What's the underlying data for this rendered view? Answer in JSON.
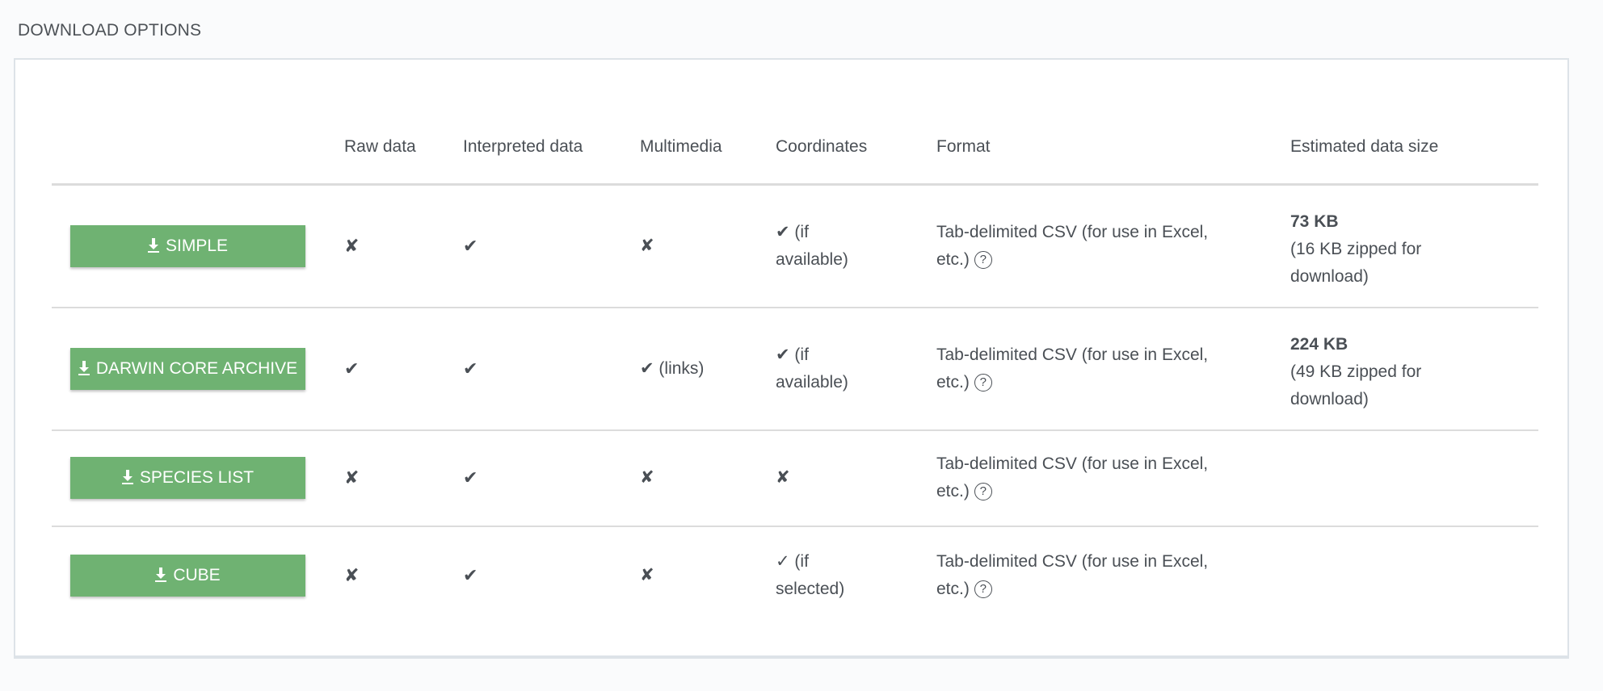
{
  "section_title": "DOWNLOAD OPTIONS",
  "columns": [
    "",
    "Raw data",
    "Interpreted data",
    "Multimedia",
    "Coordinates",
    "Format",
    "Estimated data size"
  ],
  "rows": [
    {
      "button": "SIMPLE",
      "raw": "✘",
      "interpreted": "✔",
      "multimedia": "✘",
      "coordinates": "✔ (if available)",
      "format": "Tab-delimited CSV (for use in Excel, etc.)",
      "size": "73 KB",
      "size_note": "(16 KB zipped for download)"
    },
    {
      "button": "DARWIN CORE ARCHIVE",
      "raw": "✔",
      "interpreted": "✔",
      "multimedia": "✔ (links)",
      "coordinates": "✔ (if available)",
      "format": "Tab-delimited CSV (for use in Excel, etc.)",
      "size": "224 KB",
      "size_note": "(49 KB zipped for download)"
    },
    {
      "button": "SPECIES LIST",
      "raw": "✘",
      "interpreted": "✔",
      "multimedia": "✘",
      "coordinates": "✘",
      "format": "Tab-delimited CSV (for use in Excel, etc.)"
    },
    {
      "button": "CUBE",
      "raw": "✘",
      "interpreted": "✔",
      "multimedia": "✘",
      "coordinates": "✓ (if selected)",
      "format": "Tab-delimited CSV (for use in Excel, etc.)"
    }
  ],
  "help_glyph": "?",
  "icons": {
    "download": "download-icon",
    "help": "question-circle-icon"
  },
  "colors": {
    "button": "#6fb272",
    "text": "#4a4f55",
    "border": "#dde3e8"
  }
}
